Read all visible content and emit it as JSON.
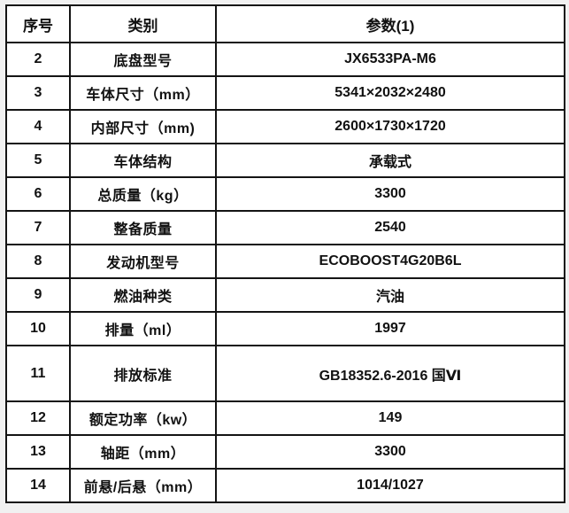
{
  "table": {
    "title": "vehicle-spec-table",
    "headers": {
      "no": "序号",
      "category": "类别",
      "parameter": "参数(1)"
    },
    "rows": [
      {
        "no": "2",
        "category": "底盘型号",
        "value": "JX6533PA-M6",
        "tall": false
      },
      {
        "no": "3",
        "category": "车体尺寸（mm）",
        "value": "5341×2032×2480",
        "tall": false
      },
      {
        "no": "4",
        "category": "内部尺寸（mm)",
        "value": "2600×1730×1720",
        "tall": false
      },
      {
        "no": "5",
        "category": "车体结构",
        "value": "承载式",
        "tall": false
      },
      {
        "no": "6",
        "category": "总质量（kg）",
        "value": "3300",
        "tall": false
      },
      {
        "no": "7",
        "category": "整备质量",
        "value": "2540",
        "tall": false
      },
      {
        "no": "8",
        "category": "发动机型号",
        "value": "ECOBOOST4G20B6L",
        "tall": false
      },
      {
        "no": "9",
        "category": "燃油种类",
        "value": "汽油",
        "tall": false
      },
      {
        "no": "10",
        "category": "排量（ml）",
        "value": "1997",
        "tall": false
      },
      {
        "no": "11",
        "category": "排放标准",
        "value": "GB18352.6-2016 国Ⅵ",
        "tall": true
      },
      {
        "no": "12",
        "category": "额定功率（kw）",
        "value": "149",
        "tall": false
      },
      {
        "no": "13",
        "category": "轴距（mm）",
        "value": "3300",
        "tall": false
      },
      {
        "no": "14",
        "category": "前悬/后悬（mm）",
        "value": "1014/1027",
        "tall": false
      }
    ]
  }
}
